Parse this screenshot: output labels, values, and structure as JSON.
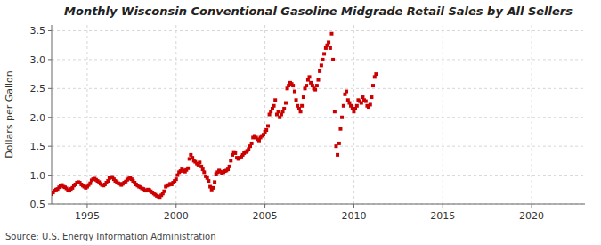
{
  "chart_data": {
    "type": "scatter",
    "title": "Monthly Wisconsin Conventional Gasoline Midgrade Retail Sales by All Sellers",
    "ylabel": "Dollars per Gallon",
    "annotations": [
      "Source: U.S. Energy Information Administration"
    ],
    "color": "#cc0000",
    "marker": "square",
    "grid": true,
    "xlim": [
      1993.0,
      2023.0
    ],
    "ylim": [
      0.5,
      3.6
    ],
    "xticks": [
      1995,
      2000,
      2005,
      2010,
      2015,
      2020
    ],
    "yticks": [
      0.5,
      {
        "value": 1.0,
        "label": "1.0"
      },
      1.5,
      {
        "value": 2.0,
        "label": "2.0"
      },
      2.5,
      {
        "value": 3.0,
        "label": "3.0"
      },
      3.5
    ],
    "x": [
      1993.0,
      1993.08,
      1993.17,
      1993.25,
      1993.33,
      1993.42,
      1993.5,
      1993.58,
      1993.67,
      1993.75,
      1993.83,
      1993.92,
      1994.0,
      1994.08,
      1994.17,
      1994.25,
      1994.33,
      1994.42,
      1994.5,
      1994.58,
      1994.67,
      1994.75,
      1994.83,
      1994.92,
      1995.0,
      1995.08,
      1995.17,
      1995.25,
      1995.33,
      1995.42,
      1995.5,
      1995.58,
      1995.67,
      1995.75,
      1995.83,
      1995.92,
      1996.0,
      1996.08,
      1996.17,
      1996.25,
      1996.33,
      1996.42,
      1996.5,
      1996.58,
      1996.67,
      1996.75,
      1996.83,
      1996.92,
      1997.0,
      1997.08,
      1997.17,
      1997.25,
      1997.33,
      1997.42,
      1997.5,
      1997.58,
      1997.67,
      1997.75,
      1997.83,
      1997.92,
      1998.0,
      1998.08,
      1998.17,
      1998.25,
      1998.33,
      1998.42,
      1998.5,
      1998.58,
      1998.67,
      1998.75,
      1998.83,
      1998.92,
      1999.0,
      1999.08,
      1999.17,
      1999.25,
      1999.33,
      1999.42,
      1999.5,
      1999.58,
      1999.67,
      1999.75,
      1999.83,
      1999.92,
      2000.0,
      2000.08,
      2000.17,
      2000.25,
      2000.33,
      2000.42,
      2000.5,
      2000.58,
      2000.67,
      2000.75,
      2000.83,
      2000.92,
      2001.0,
      2001.08,
      2001.17,
      2001.25,
      2001.33,
      2001.42,
      2001.5,
      2001.58,
      2001.67,
      2001.75,
      2001.83,
      2001.92,
      2002.0,
      2002.08,
      2002.17,
      2002.25,
      2002.33,
      2002.42,
      2002.5,
      2002.58,
      2002.67,
      2002.75,
      2002.83,
      2002.92,
      2003.0,
      2003.08,
      2003.17,
      2003.25,
      2003.33,
      2003.42,
      2003.5,
      2003.58,
      2003.67,
      2003.75,
      2003.83,
      2003.92,
      2004.0,
      2004.08,
      2004.17,
      2004.25,
      2004.33,
      2004.42,
      2004.5,
      2004.58,
      2004.67,
      2004.75,
      2004.83,
      2004.92,
      2005.0,
      2005.08,
      2005.17,
      2005.25,
      2005.33,
      2005.42,
      2005.5,
      2005.58,
      2005.67,
      2005.75,
      2005.83,
      2005.92,
      2006.0,
      2006.08,
      2006.17,
      2006.25,
      2006.33,
      2006.42,
      2006.5,
      2006.58,
      2006.67,
      2006.75,
      2006.83,
      2006.92,
      2007.0,
      2007.08,
      2007.17,
      2007.25,
      2007.33,
      2007.42,
      2007.5,
      2007.58,
      2007.67,
      2007.75,
      2007.83,
      2007.92,
      2008.0,
      2008.08,
      2008.17,
      2008.25,
      2008.33,
      2008.42,
      2008.5,
      2008.58,
      2008.67,
      2008.75,
      2008.83,
      2008.92,
      2009.0,
      2009.08,
      2009.17,
      2009.25,
      2009.33,
      2009.42,
      2009.5,
      2009.58,
      2009.67,
      2009.75,
      2009.83,
      2009.92,
      2010.0,
      2010.08,
      2010.17,
      2010.25,
      2010.33,
      2010.42,
      2010.5,
      2010.58,
      2010.67,
      2010.75,
      2010.83,
      2010.92,
      2011.0,
      2011.08,
      2011.17,
      2011.25
    ],
    "values": [
      0.67,
      0.7,
      0.73,
      0.75,
      0.76,
      0.79,
      0.82,
      0.83,
      0.8,
      0.79,
      0.77,
      0.74,
      0.73,
      0.76,
      0.78,
      0.82,
      0.84,
      0.87,
      0.88,
      0.87,
      0.84,
      0.82,
      0.8,
      0.78,
      0.8,
      0.83,
      0.86,
      0.91,
      0.93,
      0.94,
      0.92,
      0.9,
      0.88,
      0.85,
      0.83,
      0.82,
      0.84,
      0.87,
      0.9,
      0.95,
      0.96,
      0.97,
      0.93,
      0.9,
      0.88,
      0.86,
      0.85,
      0.83,
      0.85,
      0.87,
      0.89,
      0.92,
      0.94,
      0.96,
      0.93,
      0.9,
      0.87,
      0.84,
      0.82,
      0.8,
      0.79,
      0.77,
      0.76,
      0.74,
      0.73,
      0.75,
      0.74,
      0.72,
      0.7,
      0.68,
      0.66,
      0.64,
      0.63,
      0.62,
      0.65,
      0.68,
      0.72,
      0.8,
      0.82,
      0.83,
      0.85,
      0.84,
      0.87,
      0.9,
      0.93,
      1.0,
      1.05,
      1.07,
      1.1,
      1.08,
      1.06,
      1.09,
      1.12,
      1.28,
      1.35,
      1.3,
      1.25,
      1.23,
      1.2,
      1.18,
      1.22,
      1.15,
      1.1,
      1.05,
      0.98,
      0.95,
      0.9,
      0.8,
      0.75,
      0.78,
      0.88,
      1.02,
      1.05,
      1.08,
      1.06,
      1.04,
      1.05,
      1.07,
      1.08,
      1.1,
      1.15,
      1.25,
      1.35,
      1.4,
      1.38,
      1.3,
      1.28,
      1.3,
      1.32,
      1.35,
      1.38,
      1.4,
      1.42,
      1.45,
      1.5,
      1.55,
      1.65,
      1.68,
      1.65,
      1.62,
      1.6,
      1.65,
      1.68,
      1.7,
      1.75,
      1.78,
      1.85,
      2.05,
      2.1,
      2.15,
      2.2,
      2.3,
      2.05,
      2.1,
      2.0,
      2.05,
      2.1,
      2.15,
      2.25,
      2.5,
      2.55,
      2.6,
      2.58,
      2.55,
      2.45,
      2.3,
      2.2,
      2.15,
      2.1,
      2.2,
      2.35,
      2.5,
      2.55,
      2.65,
      2.7,
      2.6,
      2.55,
      2.5,
      2.48,
      2.55,
      2.65,
      2.8,
      2.9,
      3.0,
      3.1,
      3.2,
      3.25,
      3.3,
      3.2,
      3.45,
      3.0,
      2.1,
      1.5,
      1.35,
      1.55,
      1.8,
      2.0,
      2.2,
      2.4,
      2.45,
      2.3,
      2.25,
      2.2,
      2.15,
      2.1,
      2.15,
      2.2,
      2.3,
      2.28,
      2.25,
      2.35,
      2.3,
      2.28,
      2.2,
      2.18,
      2.22,
      2.35,
      2.55,
      2.7,
      2.75
    ]
  }
}
